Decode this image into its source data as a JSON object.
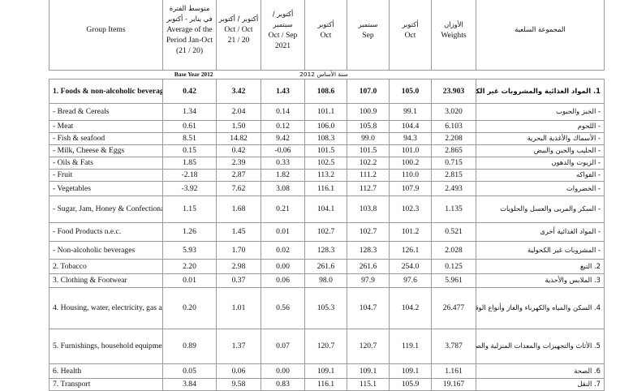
{
  "header": {
    "group_items_en": "Group Items",
    "avg_period_ar": "متوسط الفترة في يناير - أكتوبر",
    "avg_period_en": "Average of the Period Jan-Oct",
    "avg_period_years": "(21 / 20)",
    "oct_oct_ar": "أكتوبر / أكتوبر",
    "oct_oct_en": "Oct / Oct",
    "oct_oct_years": "21 / 20",
    "oct_sep_ar": "أكتوبر / سبتمبر",
    "oct_sep_en": "Oct / Sep",
    "oct_sep_year": "2021",
    "oct1_ar": "أكتوبر",
    "oct1_en": "Oct",
    "sep_ar": "سبتمبر",
    "sep_en": "Sep",
    "oct2_ar": "أكتوبر",
    "oct2_en": "Oct",
    "weights_ar": "الأوزان",
    "weights_en": "Weights",
    "group_ar": "المجموعة السلعية"
  },
  "base_year": {
    "en": "Base Year 2012",
    "ar": "سنة الأساس 2012"
  },
  "rows": [
    {
      "en": "1. Foods & non-alcoholic beverages",
      "avg": "0.42",
      "oo": "3.42",
      "os": "1.43",
      "v1": "108.6",
      "v2": "107.0",
      "v3": "105.0",
      "w": "23.903",
      "ar": "1. المواد الغذائية والمشروبات غير الكحولية",
      "bold": true
    },
    {
      "en": "- Bread & Cereals",
      "avg": "1.34",
      "oo": "2.04",
      "os": "0.14",
      "v1": "101.1",
      "v2": "100.9",
      "v3": "99.1",
      "w": "3.020",
      "ar": "- الخبز والحبوب"
    },
    {
      "en": "- Meat",
      "avg": "0.61",
      "oo": "1.50",
      "os": "0.12",
      "v1": "106.0",
      "v2": "105.8",
      "v3": "104.4",
      "w": "6.103",
      "ar": "- اللحوم"
    },
    {
      "en": "- Fish & seafood",
      "avg": "8.51",
      "oo": "14.82",
      "os": "9.42",
      "v1": "108.3",
      "v2": "99.0",
      "v3": "94.3",
      "w": "2.208",
      "ar": "- الأسماك والأغذية البحرية"
    },
    {
      "en": "- Milk, Cheese & Eggs",
      "avg": "0.15",
      "oo": "0.42",
      "os": "-0.06",
      "v1": "101.5",
      "v2": "101.5",
      "v3": "101.0",
      "w": "2.865",
      "ar": "- الحليب والجبن والبيض"
    },
    {
      "en": "- Oils & Fats",
      "avg": "1.85",
      "oo": "2.39",
      "os": "0.33",
      "v1": "102.5",
      "v2": "102.2",
      "v3": "100.2",
      "w": "0.715",
      "ar": "- الزيوت والدهون"
    },
    {
      "en": "- Fruit",
      "avg": "-2.18",
      "oo": "2.87",
      "os": "1.82",
      "v1": "113.2",
      "v2": "111.2",
      "v3": "110.0",
      "w": "2.815",
      "ar": "- الفواكه"
    },
    {
      "en": "- Vegetables",
      "avg": "-3.92",
      "oo": "7.62",
      "os": "3.08",
      "v1": "116.1",
      "v2": "112.7",
      "v3": "107.9",
      "w": "2.493",
      "ar": "- الخضروات"
    },
    {
      "en": "- Sugar, Jam, Honey & Confectionary",
      "avg": "1.15",
      "oo": "1.68",
      "os": "0.21",
      "v1": "104.1",
      "v2": "103.8",
      "v3": "102.3",
      "w": "1.135",
      "ar": "- السكر والمربى والعسل والحلويات"
    },
    {
      "en": "- Food Products n.e.c.",
      "avg": "1.26",
      "oo": "1.45",
      "os": "0.01",
      "v1": "102.7",
      "v2": "102.7",
      "v3": "101.2",
      "w": "0.521",
      "ar": "- المواد الغذائية أخرى"
    },
    {
      "en": "- Non-alcoholic beverages",
      "avg": "5.93",
      "oo": "1.70",
      "os": "0.02",
      "v1": "128.3",
      "v2": "128.3",
      "v3": "126.1",
      "w": "2.028",
      "ar": "- المشروبات غير الكحولية"
    },
    {
      "en": "2. Tobacco",
      "avg": "2.20",
      "oo": "2.98",
      "os": "0.00",
      "v1": "261.6",
      "v2": "261.6",
      "v3": "254.0",
      "w": "0.125",
      "ar": "2. التبغ"
    },
    {
      "en": "3. Clothing & Footwear",
      "avg": "0.01",
      "oo": "0.37",
      "os": "0.06",
      "v1": "98.0",
      "v2": "97.9",
      "v3": "97.6",
      "w": "5.961",
      "ar": "3. الملابس والأحذية"
    },
    {
      "en": "4. Housing, water, electricity, gas and other fuels",
      "avg": "0.20",
      "oo": "1.01",
      "os": "0.56",
      "v1": "105.3",
      "v2": "104.7",
      "v3": "104.2",
      "w": "26.477",
      "ar": "4. السكن والمياه والكهرباء والغاز وأنواع الوقود الأخرى"
    },
    {
      "en": "5. Furnishings, household equipment & routing household maintenance",
      "avg": "0.89",
      "oo": "1.37",
      "os": "0.07",
      "v1": "120.7",
      "v2": "120.7",
      "v3": "119.1",
      "w": "3.787",
      "ar": "5. الأثاث والتجهيزات والمعدات المنزلية والصيانة المنزلية الاعتيادية"
    },
    {
      "en": "6. Health",
      "avg": "0.05",
      "oo": "0.06",
      "os": "0.00",
      "v1": "109.1",
      "v2": "109.1",
      "v3": "109.1",
      "w": "1.161",
      "ar": "6. الصحة"
    },
    {
      "en": "7. Transport",
      "avg": "3.84",
      "oo": "9.58",
      "os": "0.83",
      "v1": "116.1",
      "v2": "115.1",
      "v3": "105.9",
      "w": "19.167",
      "ar": "7. النقل"
    }
  ]
}
